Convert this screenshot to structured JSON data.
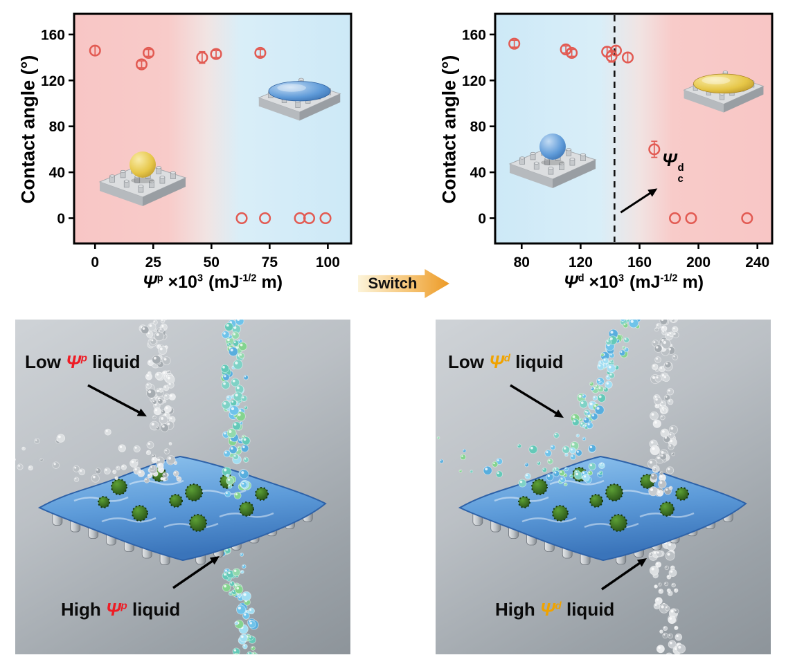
{
  "figure": {
    "switch_label": "Switch"
  },
  "chart_data": [
    {
      "type": "scatter",
      "ylabel": "Contact angle (°)",
      "xlabel_parts": {
        "symbol": "Ψ",
        "symbol_sup": "p",
        "mult": "×10",
        "mult_sup": "3",
        "unit_open": "(mJ",
        "unit_sup": "-1/2",
        "unit_close": " m)"
      },
      "xlim": [
        -9,
        110
      ],
      "ylim": [
        -22,
        178
      ],
      "xticks": [
        0,
        25,
        50,
        75,
        100
      ],
      "yticks": [
        0,
        40,
        80,
        120,
        160
      ],
      "grid": false,
      "marker": "open-circle",
      "marker_color": "#e25a52",
      "bg_stops": [
        [
          "0%",
          "#f8c6c5"
        ],
        [
          "34%",
          "#f8cbc9"
        ],
        [
          "48%",
          "#f1e4e3"
        ],
        [
          "60%",
          "#d9eef8"
        ],
        [
          "100%",
          "#cde9f7"
        ]
      ],
      "points": [
        {
          "x": 0,
          "y": 146,
          "yerr": 4
        },
        {
          "x": 20,
          "y": 134,
          "yerr": 3
        },
        {
          "x": 23,
          "y": 144,
          "yerr": 3
        },
        {
          "x": 46,
          "y": 140,
          "yerr": 5
        },
        {
          "x": 52,
          "y": 143,
          "yerr": 3
        },
        {
          "x": 71,
          "y": 144,
          "yerr": 3
        },
        {
          "x": 63,
          "y": 0
        },
        {
          "x": 73,
          "y": 0
        },
        {
          "x": 88,
          "y": 0
        },
        {
          "x": 92,
          "y": 0
        },
        {
          "x": 99,
          "y": 0
        }
      ],
      "insets": [
        {
          "shape": "sphere",
          "color": "yellow",
          "position": "lower-left",
          "meaning": "non-wetting droplet on pillars"
        },
        {
          "shape": "spread",
          "color": "blue",
          "position": "upper-right",
          "meaning": "wetting droplet on pillars"
        }
      ]
    },
    {
      "type": "scatter",
      "ylabel": "Contact angle (°)",
      "xlabel_parts": {
        "symbol": "Ψ",
        "symbol_sup": "d",
        "mult": "×10",
        "mult_sup": "3",
        "unit_open": "(mJ",
        "unit_sup": "-1/2",
        "unit_close": " m)"
      },
      "xlim": [
        62,
        250
      ],
      "ylim": [
        -22,
        178
      ],
      "xticks": [
        80,
        120,
        160,
        200,
        240
      ],
      "yticks": [
        0,
        40,
        80,
        120,
        160
      ],
      "grid": false,
      "marker": "open-circle",
      "marker_color": "#e25a52",
      "bg_stops": [
        [
          "0%",
          "#cde9f7"
        ],
        [
          "38%",
          "#d9eef8"
        ],
        [
          "52%",
          "#f1e4e3"
        ],
        [
          "64%",
          "#f8cbc9"
        ],
        [
          "100%",
          "#f8c6c5"
        ]
      ],
      "critical_line_x": 143,
      "annotation": {
        "symbol": "Ψ",
        "sup": "d",
        "sub": "c"
      },
      "points": [
        {
          "x": 75,
          "y": 152,
          "yerr": 3
        },
        {
          "x": 110,
          "y": 147,
          "yerr": 3
        },
        {
          "x": 114,
          "y": 144,
          "yerr": 3
        },
        {
          "x": 138,
          "y": 145,
          "yerr": 4
        },
        {
          "x": 141,
          "y": 141,
          "yerr": 5
        },
        {
          "x": 144,
          "y": 146,
          "yerr": 4
        },
        {
          "x": 152,
          "y": 140,
          "yerr": 4
        },
        {
          "x": 170,
          "y": 60,
          "yerr": 7
        },
        {
          "x": 184,
          "y": 0
        },
        {
          "x": 195,
          "y": 0
        },
        {
          "x": 233,
          "y": 0
        }
      ],
      "insets": [
        {
          "shape": "sphere",
          "color": "blue",
          "position": "lower-left",
          "meaning": "non-wetting droplet on pillars"
        },
        {
          "shape": "spread",
          "color": "yellow",
          "position": "upper-right",
          "meaning": "wetting droplet on pillars"
        }
      ]
    }
  ],
  "panels": {
    "left": {
      "low_label": {
        "pre": "Low ",
        "sym": "Ψ",
        "sup": "p",
        "post": " liquid"
      },
      "high_label": {
        "pre": "High ",
        "sym": "Ψ",
        "sup": "p",
        "post": " liquid"
      },
      "sym_color": "#ee1c25",
      "streams": {
        "bouncing": "silver",
        "penetrating": "cyan-green"
      }
    },
    "right": {
      "low_label": {
        "pre": "Low ",
        "sym": "Ψ",
        "sup": "d",
        "post": " liquid"
      },
      "high_label": {
        "pre": "High ",
        "sym": "Ψ",
        "sup": "d",
        "post": " liquid"
      },
      "sym_color": "#f0a300",
      "streams": {
        "bouncing": "cyan-green",
        "penetrating": "silver"
      }
    }
  },
  "colors": {
    "marker": "#e25a52",
    "pink_zone": "#f8c6c5",
    "blue_zone": "#cde9f7",
    "surface_blue": "#5d9bd9",
    "moss_green": "#2e6b1c",
    "switch_orange": "#ec9a26"
  }
}
